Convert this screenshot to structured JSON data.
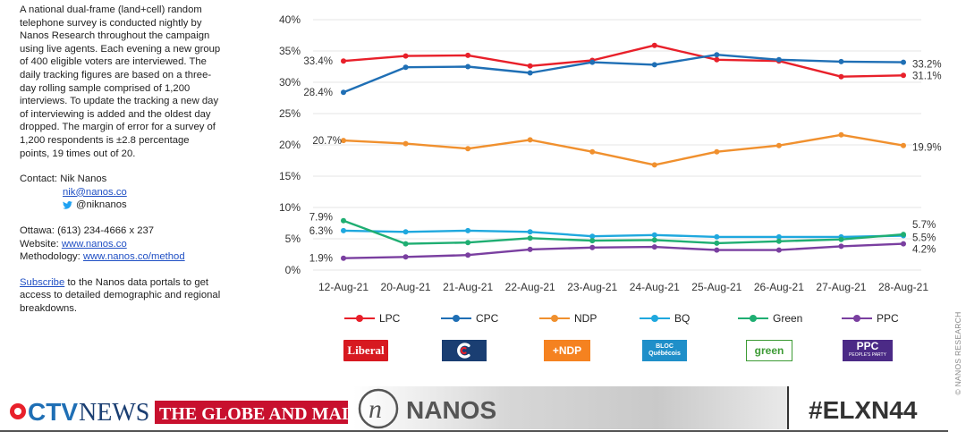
{
  "sidebar": {
    "method_text": "A national dual-frame (land+cell) random telephone survey is conducted nightly by Nanos Research throughout the campaign using live agents.  Each evening a new group of 400 eligible voters are interviewed.  The daily tracking figures are based on a three-day rolling sample comprised of 1,200 interviews.  To update the tracking a new day of interviewing is added and the oldest day dropped. The margin of error for a survey of 1,200 respondents is ±2.8 percentage points, 19 times out of 20.",
    "contact_label": "Contact:  Nik Nanos",
    "contact_email": "nik@nanos.co",
    "contact_twitter": "@niknanos",
    "ottawa": "Ottawa: (613) 234-4666 x 237",
    "website_label": "Website: ",
    "website_link": "www.nanos.co",
    "methodology_label": "Methodology: ",
    "methodology_link": "www.nanos.co/method",
    "subscribe_link": "Subscribe",
    "subscribe_rest": " to the Nanos data portals to get access to detailed demographic and regional breakdowns."
  },
  "chart_data": {
    "type": "line",
    "categories": [
      "12-Aug-21",
      "20-Aug-21",
      "21-Aug-21",
      "22-Aug-21",
      "23-Aug-21",
      "24-Aug-21",
      "25-Aug-21",
      "26-Aug-21",
      "27-Aug-21",
      "28-Aug-21"
    ],
    "ylim": [
      0,
      40
    ],
    "yticks": [
      "0%",
      "5%",
      "10%",
      "15%",
      "20%",
      "25%",
      "30%",
      "35%",
      "40%"
    ],
    "series": [
      {
        "name": "LPC",
        "color": "#e8202a",
        "values": [
          33.4,
          34.2,
          34.3,
          32.6,
          33.5,
          35.9,
          33.6,
          33.4,
          30.9,
          31.1
        ],
        "start_label": "33.4%",
        "end_label": "31.1%"
      },
      {
        "name": "CPC",
        "color": "#1f6fb5",
        "values": [
          28.4,
          32.4,
          32.5,
          31.5,
          33.2,
          32.8,
          34.4,
          33.6,
          33.3,
          33.2
        ],
        "start_label": "28.4%",
        "end_label": "33.2%"
      },
      {
        "name": "NDP",
        "color": "#f0902e",
        "values": [
          20.7,
          20.2,
          19.4,
          20.8,
          18.9,
          16.8,
          18.9,
          19.9,
          21.6,
          19.9
        ],
        "start_label": "20.7%",
        "end_label": "19.9%"
      },
      {
        "name": "BQ",
        "color": "#1fa8de",
        "values": [
          6.3,
          6.1,
          6.3,
          6.1,
          5.4,
          5.6,
          5.3,
          5.3,
          5.3,
          5.5
        ],
        "start_label": "6.3%",
        "end_label": "5.5%"
      },
      {
        "name": "Green",
        "color": "#1fae72",
        "values": [
          7.9,
          4.2,
          4.4,
          5.1,
          4.7,
          4.8,
          4.3,
          4.6,
          4.9,
          5.7
        ],
        "start_label": "7.9%",
        "end_label": "5.7%"
      },
      {
        "name": "PPC",
        "color": "#7a3fa0",
        "values": [
          1.9,
          2.1,
          2.4,
          3.3,
          3.6,
          3.7,
          3.2,
          3.2,
          3.8,
          4.2
        ],
        "start_label": "1.9%",
        "end_label": "4.2%"
      }
    ]
  },
  "logos": {
    "lpc": "Liberal",
    "ndp": "+NDP",
    "bq": "BLOC Québécois",
    "green": "green",
    "ppc": "PPC",
    "ppc_sub": "PEOPLE'S PARTY"
  },
  "footer": {
    "ctv": "CTV",
    "news": "NEWS",
    "globe": "THE GLOBE AND MAIL",
    "nanos": "NANOS",
    "hashtag": "#ELXN44"
  },
  "credit": "© NANOS RESEARCH",
  "colors": {
    "link": "#1f4fc4",
    "globe_red": "#c8102e",
    "hashtag": "#333333"
  }
}
